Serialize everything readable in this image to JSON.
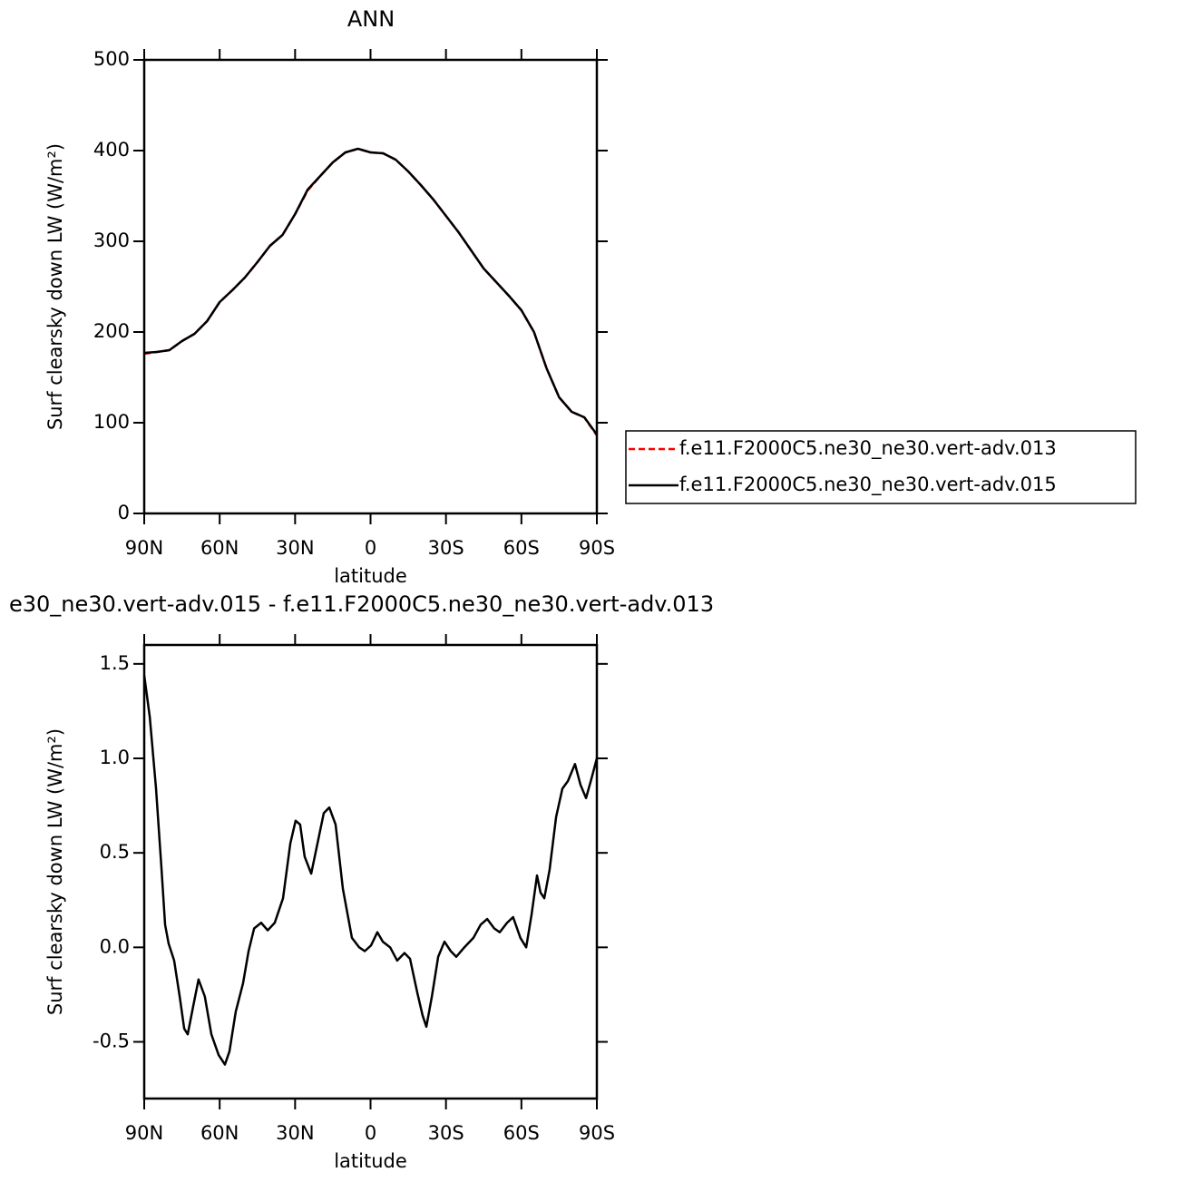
{
  "chart_data": [
    {
      "type": "line",
      "title": "ANN",
      "xlabel": "latitude",
      "ylabel": "Surf clearsky down LW (W/m²)",
      "xlim": [
        90,
        -90
      ],
      "ylim": [
        0,
        500
      ],
      "xticks": [
        {
          "value": 90,
          "label": "90N"
        },
        {
          "value": 60,
          "label": "60N"
        },
        {
          "value": 30,
          "label": "30N"
        },
        0,
        {
          "value": -30,
          "label": "30S"
        },
        {
          "value": -60,
          "label": "60S"
        },
        {
          "value": -90,
          "label": "90S"
        }
      ],
      "yticks": [
        0,
        100,
        200,
        300,
        400,
        500
      ],
      "legend": "right",
      "x": [
        90,
        85,
        80,
        75,
        70,
        65,
        60,
        55,
        50,
        45,
        40,
        35,
        30,
        25,
        20,
        15,
        10,
        5,
        0,
        -5,
        -10,
        -15,
        -20,
        -25,
        -30,
        -35,
        -40,
        -45,
        -50,
        -55,
        -60,
        -65,
        -70,
        -75,
        -80,
        -85,
        -90
      ],
      "series": [
        {
          "name": "f.e11.F2000C5.ne30_ne30.vert-adv.013",
          "color": "#ff0000",
          "dashed": true,
          "values": [
            176,
            178,
            180,
            190,
            198,
            212,
            233,
            246,
            260,
            277,
            295,
            307,
            330,
            356,
            372,
            387,
            398,
            402,
            398,
            397,
            390,
            377,
            362,
            346,
            328,
            310,
            290,
            270,
            255,
            240,
            224,
            200,
            160,
            128,
            112,
            106,
            86
          ]
        },
        {
          "name": "f.e11.F2000C5.ne30_ne30.vert-adv.015",
          "color": "#000000",
          "dashed": false,
          "values": [
            177,
            178,
            180,
            190,
            198,
            212,
            233,
            246,
            260,
            277,
            295,
            307,
            330,
            357,
            372,
            387,
            398,
            402,
            398,
            397,
            390,
            377,
            362,
            346,
            328,
            310,
            290,
            270,
            255,
            240,
            224,
            200,
            160,
            128,
            112,
            106,
            87
          ]
        }
      ]
    },
    {
      "type": "line",
      "title": "e30_ne30.vert-adv.015 - f.e11.F2000C5.ne30_ne30.vert-adv.013",
      "xlabel": "latitude",
      "ylabel": "Surf clearsky down LW (W/m²)",
      "xlim": [
        90,
        -90
      ],
      "ylim": [
        -0.8,
        1.6
      ],
      "xticks": [
        {
          "value": 90,
          "label": "90N"
        },
        {
          "value": 60,
          "label": "60N"
        },
        {
          "value": 30,
          "label": "30N"
        },
        0,
        {
          "value": -30,
          "label": "30S"
        },
        {
          "value": -60,
          "label": "60S"
        },
        {
          "value": -90,
          "label": "90S"
        }
      ],
      "yticks": [
        -0.5,
        {
          "value": 0,
          "label": "0.0"
        },
        0.5,
        {
          "value": 1,
          "label": "1.0"
        },
        1.5
      ],
      "x": [
        90,
        87.8,
        85.3,
        83.1,
        81.7,
        80.3,
        78.1,
        75.9,
        74.1,
        72.7,
        70.5,
        68.4,
        65.9,
        63.3,
        60.4,
        57.9,
        56.1,
        53.6,
        50.7,
        48.5,
        46.3,
        43.5,
        40.9,
        38.1,
        34.8,
        31.9,
        29.8,
        28.0,
        26.2,
        23.6,
        21.1,
        18.6,
        16.4,
        13.9,
        11.0,
        7.4,
        4.5,
        2.3,
        -0.2,
        -2.7,
        -4.9,
        -7.8,
        -10.6,
        -13.5,
        -15.7,
        -18.6,
        -20.7,
        -22.2,
        -24.4,
        -26.9,
        -29.4,
        -31.9,
        -34.1,
        -37.3,
        -40.9,
        -43.8,
        -46.4,
        -49.2,
        -51.4,
        -54.3,
        -56.7,
        -59.6,
        -61.9,
        -64.0,
        -66.2,
        -67.6,
        -69.1,
        -71.2,
        -73.8,
        -76.3,
        -78.5,
        -81.3,
        -83.5,
        -85.7,
        -87.8,
        -90
      ],
      "series": [
        {
          "color": "#000000",
          "dashed": false,
          "values": [
            1.44,
            1.22,
            0.84,
            0.41,
            0.12,
            0.02,
            -0.07,
            -0.26,
            -0.43,
            -0.46,
            -0.31,
            -0.17,
            -0.26,
            -0.46,
            -0.57,
            -0.62,
            -0.55,
            -0.34,
            -0.19,
            -0.02,
            0.1,
            0.13,
            0.09,
            0.13,
            0.26,
            0.55,
            0.67,
            0.65,
            0.48,
            0.39,
            0.55,
            0.71,
            0.74,
            0.65,
            0.31,
            0.05,
            0.0,
            -0.02,
            0.01,
            0.08,
            0.03,
            0.0,
            -0.07,
            -0.03,
            -0.06,
            -0.24,
            -0.36,
            -0.42,
            -0.26,
            -0.05,
            0.03,
            -0.02,
            -0.05,
            0.0,
            0.05,
            0.12,
            0.15,
            0.1,
            0.08,
            0.13,
            0.16,
            0.05,
            0.0,
            0.17,
            0.38,
            0.29,
            0.26,
            0.41,
            0.69,
            0.84,
            0.88,
            0.97,
            0.86,
            0.79,
            0.89,
            1.0
          ]
        }
      ]
    }
  ]
}
